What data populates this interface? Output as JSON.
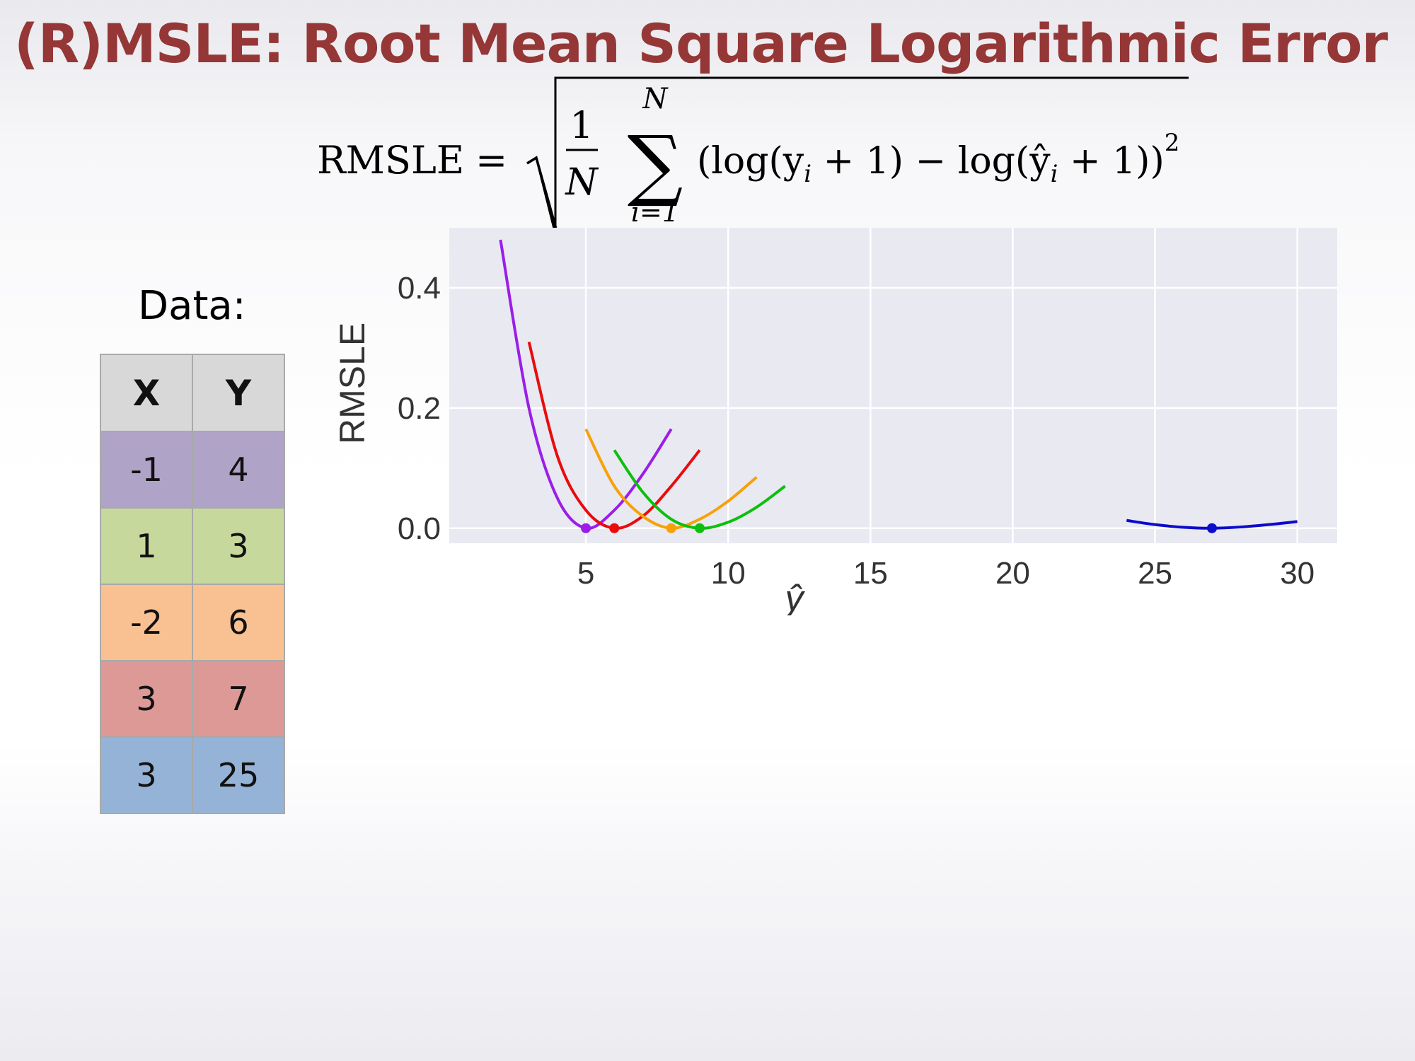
{
  "slide": {
    "title": "(R)MSLE: Root Mean Square Logarithmic Error"
  },
  "formula": {
    "lhs": "RMSLE",
    "equals": "=",
    "frac_num": "1",
    "frac_den": "N",
    "sum_upper": "N",
    "sum_sign": "∑",
    "sum_lower": "i=1",
    "body": "(log(y",
    "body_sub": "i",
    "body_mid": " + 1) − log(ŷ",
    "body_sub2": "i",
    "body_end": " + 1))",
    "exponent": "2"
  },
  "data_table": {
    "heading": "Data:",
    "headers": [
      "X",
      "Y"
    ],
    "rows": [
      {
        "x": "-1",
        "y": "4",
        "color": "#b0a3c8"
      },
      {
        "x": "1",
        "y": "3",
        "color": "#c7d89c"
      },
      {
        "x": "-2",
        "y": "6",
        "color": "#f9c192"
      },
      {
        "x": "3",
        "y": "7",
        "color": "#dd9996"
      },
      {
        "x": "3",
        "y": "25",
        "color": "#95b3d7"
      }
    ]
  },
  "chart_data": {
    "type": "line",
    "xlabel": "ŷ",
    "ylabel": "RMSLE",
    "xlim": [
      0.2,
      31.4
    ],
    "ylim": [
      -0.025,
      0.5
    ],
    "xticks": [
      "5",
      "10",
      "15",
      "20",
      "25",
      "30"
    ],
    "xtick_values": [
      5,
      10,
      15,
      20,
      25,
      30
    ],
    "yticks": [
      "0.0",
      "0.2",
      "0.4"
    ],
    "ytick_values": [
      0,
      0.2,
      0.4
    ],
    "grid": true,
    "background": "#e9e9f1",
    "series": [
      {
        "color": "#9b1ee8",
        "minimum": [
          5,
          0
        ],
        "x_range": [
          2,
          8
        ],
        "points": [
          [
            2,
            0.48
          ],
          [
            3,
            0.2
          ],
          [
            4,
            0.05
          ],
          [
            5,
            0.0
          ],
          [
            6,
            0.03
          ],
          [
            7,
            0.09
          ],
          [
            8,
            0.165
          ]
        ]
      },
      {
        "color": "#e80c0c",
        "minimum": [
          6,
          0
        ],
        "x_range": [
          3,
          9
        ],
        "points": [
          [
            3,
            0.31
          ],
          [
            4,
            0.12
          ],
          [
            5,
            0.03
          ],
          [
            6,
            0.0
          ],
          [
            7,
            0.02
          ],
          [
            8,
            0.07
          ],
          [
            9,
            0.13
          ]
        ]
      },
      {
        "color": "#f7a10a",
        "minimum": [
          8,
          0
        ],
        "x_range": [
          5,
          11
        ],
        "points": [
          [
            5,
            0.165
          ],
          [
            6,
            0.07
          ],
          [
            7,
            0.02
          ],
          [
            8,
            0.0
          ],
          [
            9,
            0.015
          ],
          [
            10,
            0.045
          ],
          [
            11,
            0.085
          ]
        ]
      },
      {
        "color": "#0ebf0e",
        "minimum": [
          9,
          0
        ],
        "x_range": [
          6,
          12
        ],
        "points": [
          [
            6,
            0.13
          ],
          [
            7,
            0.06
          ],
          [
            8,
            0.015
          ],
          [
            9,
            0.0
          ],
          [
            10,
            0.01
          ],
          [
            11,
            0.035
          ],
          [
            12,
            0.07
          ]
        ]
      },
      {
        "color": "#0c0ccc",
        "minimum": [
          27,
          0
        ],
        "x_range": [
          24,
          30
        ],
        "points": [
          [
            24,
            0.013
          ],
          [
            25,
            0.006
          ],
          [
            26,
            0.0015
          ],
          [
            27,
            0.0
          ],
          [
            28,
            0.002
          ],
          [
            29,
            0.006
          ],
          [
            30,
            0.011
          ]
        ]
      }
    ]
  }
}
